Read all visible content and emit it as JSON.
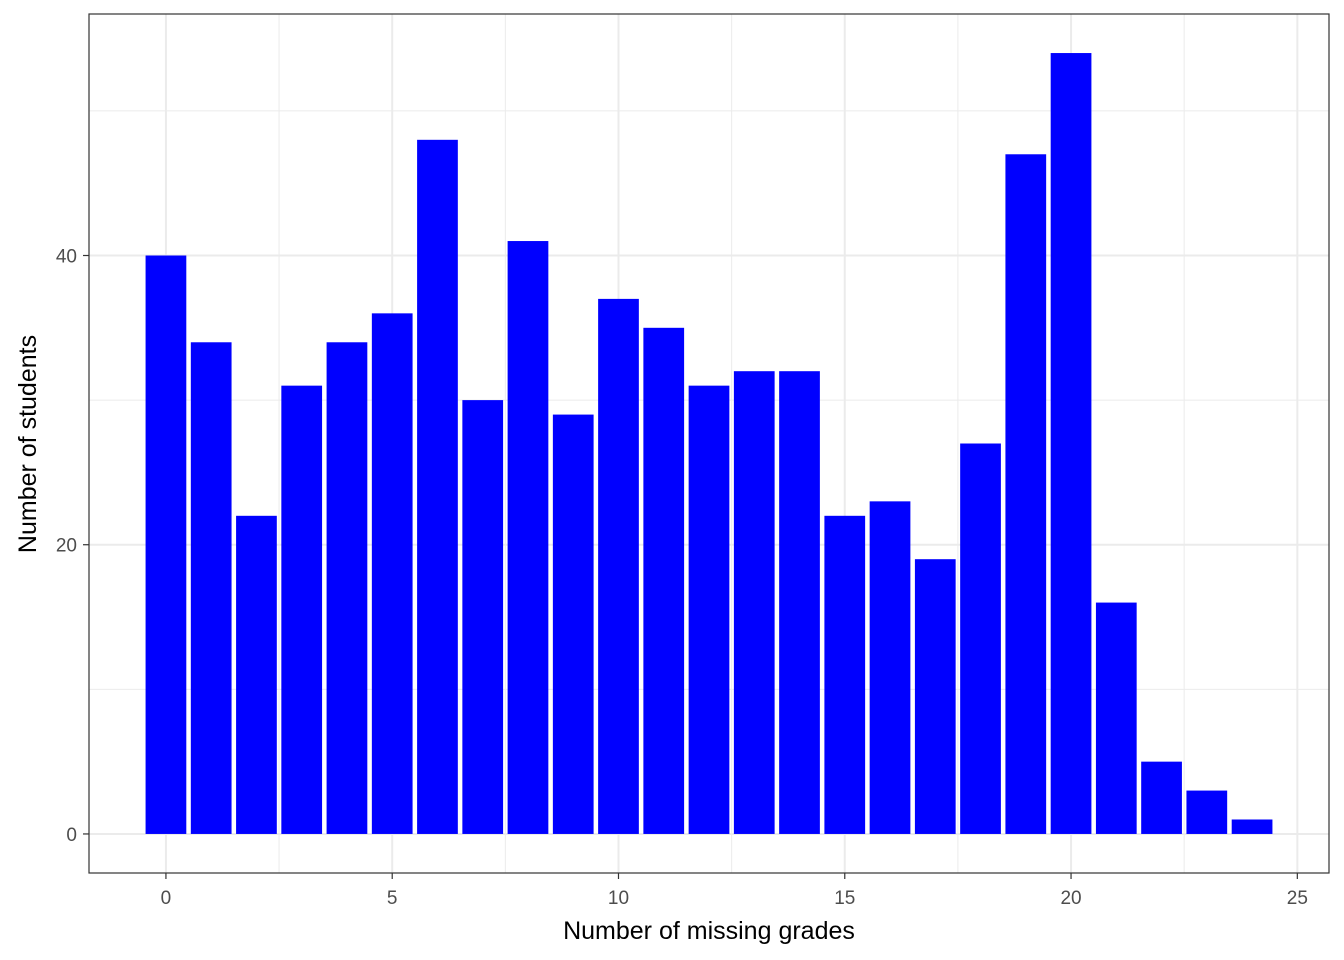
{
  "chart_data": {
    "type": "bar",
    "xlabel": "Number of missing grades",
    "ylabel": "Number of students",
    "x": [
      0,
      1,
      2,
      3,
      4,
      5,
      6,
      7,
      8,
      9,
      10,
      11,
      12,
      13,
      14,
      15,
      16,
      17,
      18,
      19,
      20,
      21,
      22,
      23,
      24
    ],
    "values": [
      40,
      34,
      22,
      31,
      34,
      36,
      48,
      30,
      41,
      29,
      37,
      35,
      31,
      32,
      32,
      22,
      23,
      19,
      27,
      47,
      54,
      16,
      5,
      3,
      1
    ],
    "xlim": [
      -1.7,
      25.7
    ],
    "ylim": [
      -2.7,
      56.7
    ],
    "x_ticks": [
      0,
      5,
      10,
      15,
      20,
      25
    ],
    "x_tick_labels": [
      "0",
      "5",
      "10",
      "15",
      "20",
      "25"
    ],
    "y_ticks": [
      0,
      20,
      40
    ],
    "y_tick_labels": [
      "0",
      "20",
      "40"
    ],
    "grid": true,
    "bar_color": "#0000ff",
    "panel_border_color": "#333333",
    "grid_color": "#ebebeb",
    "tick_color": "#333333"
  }
}
